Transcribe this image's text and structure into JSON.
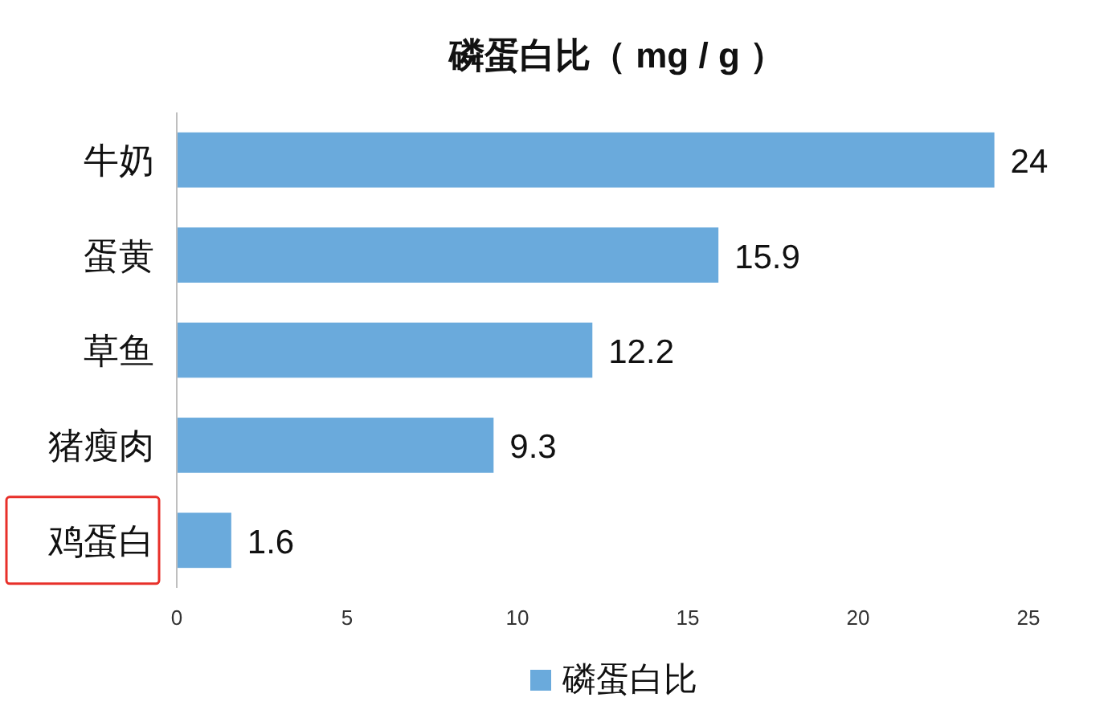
{
  "chart_data": {
    "type": "bar",
    "orientation": "horizontal",
    "title": "磷蛋白比（ mg / g ）",
    "categories": [
      "牛奶",
      "蛋黄",
      "草鱼",
      "猪瘦肉",
      "鸡蛋白"
    ],
    "series": [
      {
        "name": "磷蛋白比",
        "color": "#6aaadc",
        "values": [
          24,
          15.9,
          12.2,
          9.3,
          1.6
        ]
      }
    ],
    "xlim": [
      0,
      25
    ],
    "xticks": [
      0,
      5,
      10,
      15,
      20,
      25
    ],
    "data_labels": true,
    "legend": "bottom",
    "grid": false
  }
}
